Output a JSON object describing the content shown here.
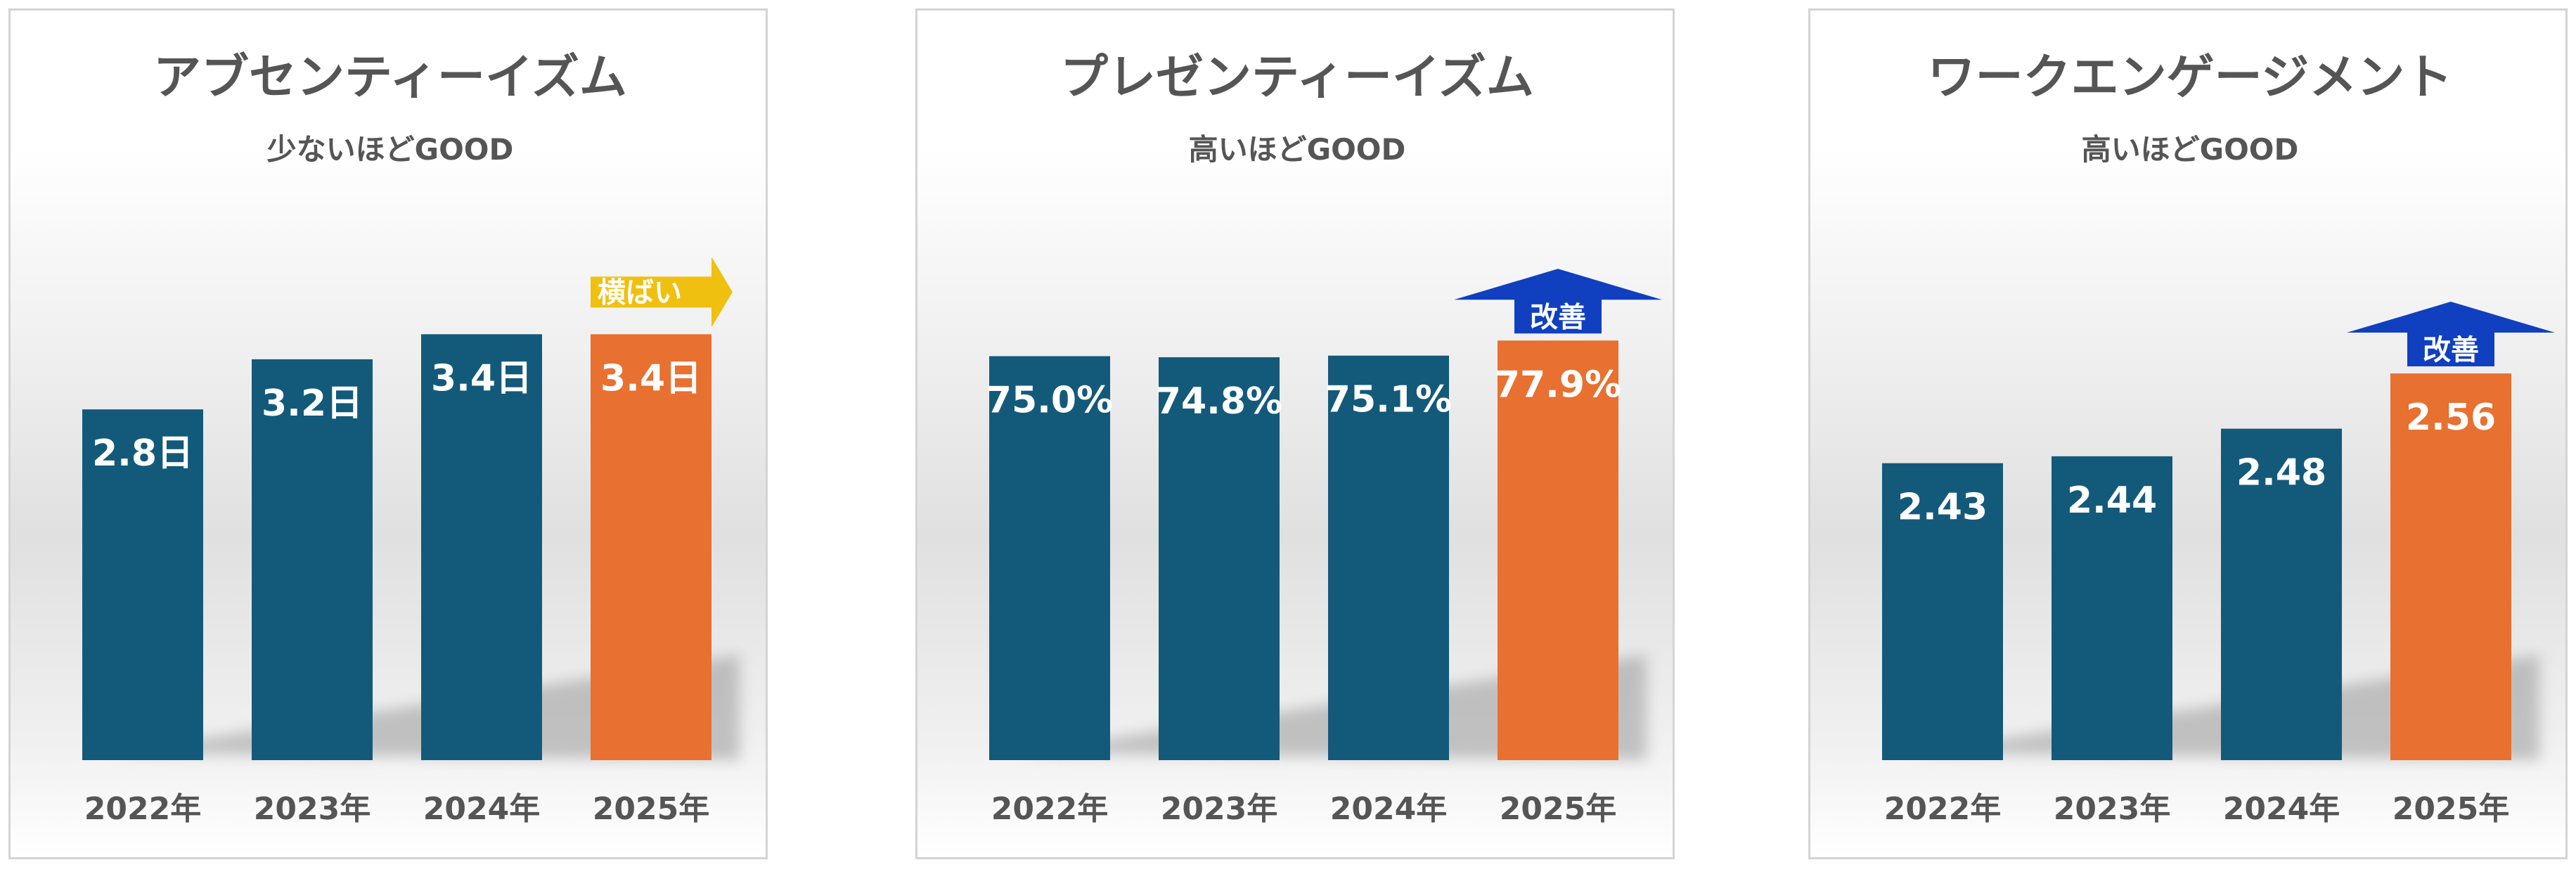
{
  "colors": {
    "bar": "#135a7a",
    "highlight": "#e87030",
    "trend_flat": "#f0c010",
    "trend_up": "#1040c0",
    "text": "#555555"
  },
  "chart_data": [
    {
      "type": "bar",
      "title": "アブセンティーイズム",
      "subtitle": "少ないほどGOOD",
      "categories": [
        "2022年",
        "2023年",
        "2024年",
        "2025年"
      ],
      "values": [
        2.8,
        3.2,
        3.4,
        3.4
      ],
      "data_labels": [
        "2.8日",
        "3.2日",
        "3.4日",
        "3.4日"
      ],
      "highlight_index": 3,
      "ylim": [
        0,
        4.3
      ],
      "badge": {
        "text": "横ばい",
        "style": "right-arrow"
      }
    },
    {
      "type": "bar",
      "title": "プレゼンティーイズム",
      "subtitle": "高いほどGOOD",
      "categories": [
        "2022年",
        "2023年",
        "2024年",
        "2025年"
      ],
      "values": [
        75.0,
        74.8,
        75.1,
        77.9
      ],
      "data_labels": [
        "75.0%",
        "74.8%",
        "75.1%",
        "77.9%"
      ],
      "highlight_index": 3,
      "ylim": [
        0,
        100.0
      ],
      "badge": {
        "text": "改善",
        "style": "up-arrow"
      }
    },
    {
      "type": "bar",
      "title": "ワークエンゲージメント",
      "subtitle": "高いほどGOOD",
      "categories": [
        "2022年",
        "2023年",
        "2024年",
        "2025年"
      ],
      "values": [
        2.43,
        2.44,
        2.48,
        2.56
      ],
      "data_labels": [
        "2.43",
        "2.44",
        "2.48",
        "2.56"
      ],
      "highlight_index": 3,
      "ylim": [
        2.0,
        2.78
      ],
      "badge": {
        "text": "改善",
        "style": "up-arrow"
      }
    }
  ]
}
